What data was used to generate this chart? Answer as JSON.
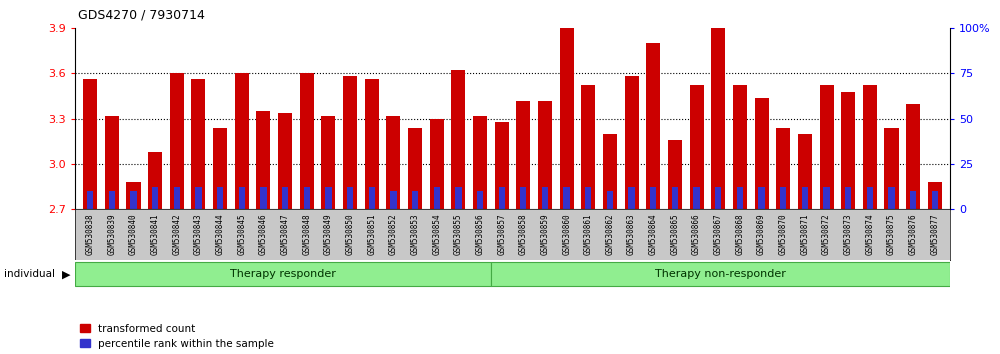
{
  "title": "GDS4270 / 7930714",
  "samples": [
    "GSM530838",
    "GSM530839",
    "GSM530840",
    "GSM530841",
    "GSM530842",
    "GSM530843",
    "GSM530844",
    "GSM530845",
    "GSM530846",
    "GSM530847",
    "GSM530848",
    "GSM530849",
    "GSM530850",
    "GSM530851",
    "GSM530852",
    "GSM530853",
    "GSM530854",
    "GSM530855",
    "GSM530856",
    "GSM530857",
    "GSM530858",
    "GSM530859",
    "GSM530860",
    "GSM530861",
    "GSM530862",
    "GSM530863",
    "GSM530864",
    "GSM530865",
    "GSM530866",
    "GSM530867",
    "GSM530868",
    "GSM530869",
    "GSM530870",
    "GSM530871",
    "GSM530872",
    "GSM530873",
    "GSM530874",
    "GSM530875",
    "GSM530876",
    "GSM530877"
  ],
  "transformed_count": [
    3.56,
    3.32,
    2.88,
    3.08,
    3.6,
    3.56,
    3.24,
    3.6,
    3.35,
    3.34,
    3.6,
    3.32,
    3.58,
    3.56,
    3.32,
    3.24,
    3.3,
    3.62,
    3.32,
    3.28,
    3.42,
    3.42,
    3.9,
    3.52,
    3.2,
    3.58,
    3.8,
    3.16,
    3.52,
    3.9,
    3.52,
    3.44,
    3.24,
    3.2,
    3.52,
    3.48,
    3.52,
    3.24,
    3.4,
    2.88
  ],
  "percentile_rank": [
    10,
    10,
    10,
    12,
    12,
    12,
    12,
    12,
    12,
    12,
    12,
    12,
    12,
    12,
    10,
    10,
    12,
    12,
    10,
    12,
    12,
    12,
    12,
    12,
    10,
    12,
    12,
    12,
    12,
    12,
    12,
    12,
    12,
    12,
    12,
    12,
    12,
    12,
    10,
    10
  ],
  "group_labels": [
    "Therapy responder",
    "Therapy non-responder"
  ],
  "group_counts": [
    19,
    21
  ],
  "bar_color_red": "#CC0000",
  "bar_color_blue": "#3333CC",
  "ymin": 2.7,
  "ymax": 3.9,
  "yticks_left": [
    2.7,
    3.0,
    3.3,
    3.6,
    3.9
  ],
  "yticks_right": [
    0,
    25,
    50,
    75,
    100
  ],
  "bg_color": "#FFFFFF",
  "tick_area_color": "#C8C8C8",
  "group_fill": "#90EE90",
  "group_edge": "#44AA44"
}
